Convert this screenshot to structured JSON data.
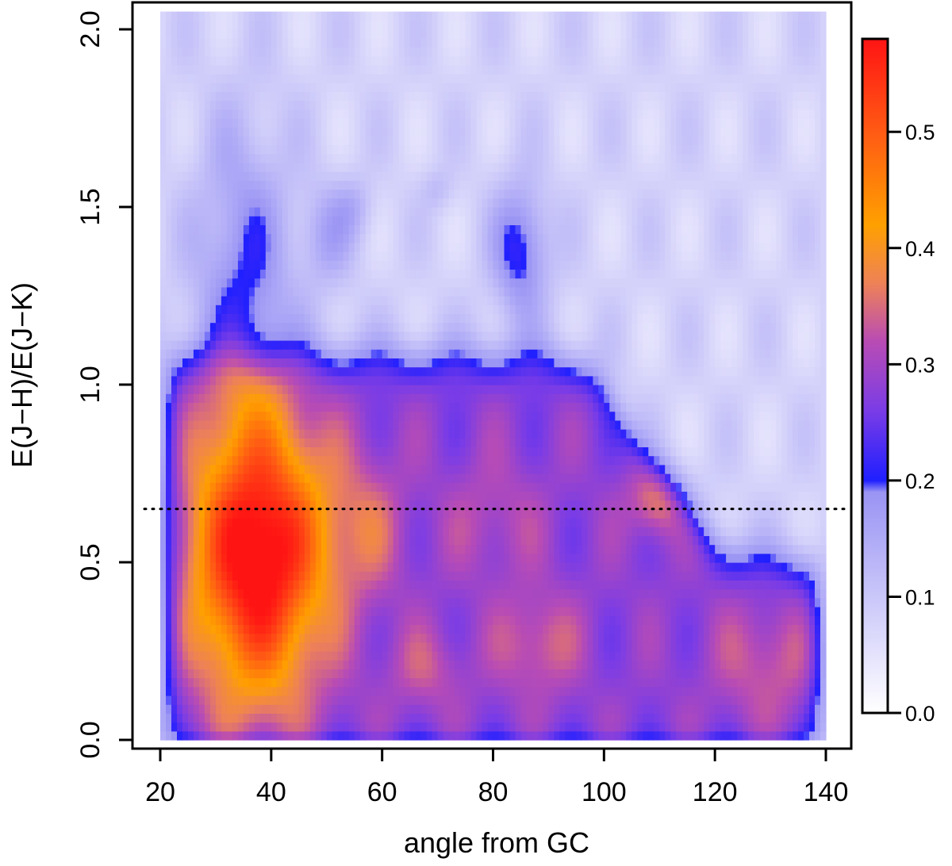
{
  "chart_data": {
    "type": "heatmap",
    "title": "",
    "xlabel": "angle from GC",
    "ylabel": "E(J−H)/E(J−K)",
    "x_range": [
      15,
      145
    ],
    "y_range": [
      -0.025,
      2.07
    ],
    "x_ticks": [
      20,
      40,
      60,
      80,
      100,
      120,
      140
    ],
    "x_tick_labels": [
      "20",
      "40",
      "60",
      "80",
      "100",
      "120",
      "140"
    ],
    "y_ticks": [
      0.0,
      0.5,
      1.0,
      1.5,
      2.0
    ],
    "y_tick_labels": [
      "0.0",
      "0.5",
      "1.0",
      "1.5",
      "2.0"
    ],
    "data_extent": {
      "x": [
        20,
        140
      ],
      "y": [
        0,
        2.05
      ]
    },
    "reference_line": {
      "style": "dotted",
      "y": 0.65
    },
    "colorbar": {
      "range": [
        0,
        0.58
      ],
      "ticks": [
        0.0,
        0.1,
        0.2,
        0.3,
        0.4,
        0.5
      ],
      "tick_labels": [
        "0.0",
        "0.1",
        "0.2",
        "0.3",
        "0.4",
        "0.5"
      ],
      "stops": [
        {
          "value": 0.0,
          "color": "#ffffff"
        },
        {
          "value": 0.19,
          "color": "#9a94f4"
        },
        {
          "value": 0.2,
          "color": "#1f1fff"
        },
        {
          "value": 0.26,
          "color": "#7a3ce6"
        },
        {
          "value": 0.32,
          "color": "#b94cb4"
        },
        {
          "value": 0.37,
          "color": "#ee8256"
        },
        {
          "value": 0.42,
          "color": "#ffa000"
        },
        {
          "value": 0.5,
          "color": "#ff5a14"
        },
        {
          "value": 0.58,
          "color": "#ff1414"
        }
      ]
    },
    "density_peaks": [
      {
        "x": 38,
        "y": 0.57,
        "value": 0.58
      },
      {
        "x": 57,
        "y": 0.6,
        "value": 0.39
      },
      {
        "x": 88,
        "y": 0.27,
        "value": 0.36
      },
      {
        "x": 68,
        "y": 0.2,
        "value": 0.34
      },
      {
        "x": 130,
        "y": 0.22,
        "value": 0.32
      },
      {
        "x": 85,
        "y": 1.38,
        "value": 0.28
      },
      {
        "x": 110,
        "y": 0.68,
        "value": 0.27
      }
    ]
  }
}
